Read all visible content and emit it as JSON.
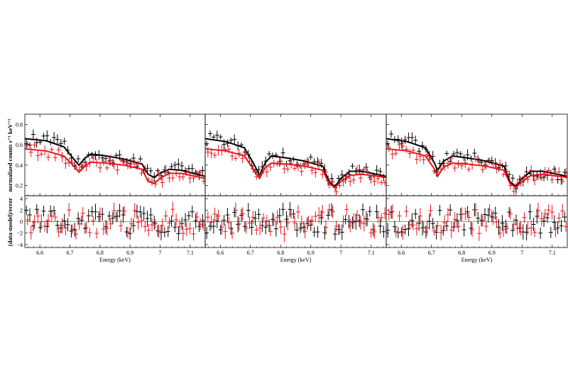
{
  "figure": {
    "ylabel_top": "normalized counts s⁻¹ keV⁻¹",
    "ylabel_bottom": "(data-model)/error",
    "colors": {
      "dataset_1": "#000000",
      "dataset_2": "#e8141c",
      "zero_line": "#33dd33",
      "frame": "#000000"
    }
  },
  "chart_data": [
    {
      "type": "scatter",
      "panel": "left",
      "xlabel": "Energy (keV)",
      "xlim": [
        6.55,
        7.15
      ],
      "x_ticks": [
        "6.6",
        "6.7",
        "6.8",
        "6.9",
        "7",
        "7.1"
      ],
      "top": {
        "ylim": [
          0.1,
          0.9
        ],
        "y_ticks": [
          "0.2",
          "0.4",
          "0.6",
          "0.8"
        ],
        "series": [
          {
            "model": [
              [
                6.55,
                0.66
              ],
              [
                6.62,
                0.64
              ],
              [
                6.68,
                0.58
              ],
              [
                6.71,
                0.47
              ],
              [
                6.73,
                0.4
              ],
              [
                6.75,
                0.47
              ],
              [
                6.77,
                0.51
              ],
              [
                6.82,
                0.49
              ],
              [
                6.88,
                0.46
              ],
              [
                6.94,
                0.41
              ],
              [
                6.96,
                0.31
              ],
              [
                6.98,
                0.28
              ],
              [
                7.0,
                0.32
              ],
              [
                7.03,
                0.36
              ],
              [
                7.07,
                0.35
              ],
              [
                7.15,
                0.29
              ]
            ]
          },
          {
            "model": [
              [
                6.55,
                0.56
              ],
              [
                6.62,
                0.54
              ],
              [
                6.68,
                0.49
              ],
              [
                6.71,
                0.4
              ],
              [
                6.73,
                0.33
              ],
              [
                6.75,
                0.39
              ],
              [
                6.77,
                0.43
              ],
              [
                6.82,
                0.42
              ],
              [
                6.88,
                0.4
              ],
              [
                6.94,
                0.36
              ],
              [
                6.96,
                0.24
              ],
              [
                6.98,
                0.22
              ],
              [
                7.0,
                0.27
              ],
              [
                7.03,
                0.32
              ],
              [
                7.07,
                0.32
              ],
              [
                7.15,
                0.27
              ]
            ]
          }
        ]
      },
      "bottom": {
        "ylim": [
          -4.5,
          4.5
        ],
        "y_ticks": [
          "−4",
          "−2",
          "0",
          "2",
          "4"
        ]
      }
    },
    {
      "type": "scatter",
      "panel": "middle",
      "xlabel": "Energy (keV)",
      "xlim": [
        6.55,
        7.15
      ],
      "x_ticks": [
        "6.6",
        "6.7",
        "6.8",
        "6.9",
        "7",
        "7.1"
      ],
      "top": {
        "ylim": [
          0.1,
          0.9
        ],
        "series": [
          {
            "model": [
              [
                6.55,
                0.66
              ],
              [
                6.62,
                0.63
              ],
              [
                6.68,
                0.57
              ],
              [
                6.71,
                0.42
              ],
              [
                6.73,
                0.3
              ],
              [
                6.75,
                0.43
              ],
              [
                6.77,
                0.49
              ],
              [
                6.82,
                0.47
              ],
              [
                6.88,
                0.44
              ],
              [
                6.94,
                0.39
              ],
              [
                6.96,
                0.24
              ],
              [
                6.98,
                0.19
              ],
              [
                7.0,
                0.27
              ],
              [
                7.03,
                0.34
              ],
              [
                7.07,
                0.34
              ],
              [
                7.15,
                0.29
              ]
            ]
          },
          {
            "model": [
              [
                6.55,
                0.56
              ],
              [
                6.62,
                0.54
              ],
              [
                6.68,
                0.49
              ],
              [
                6.71,
                0.36
              ],
              [
                6.73,
                0.27
              ],
              [
                6.75,
                0.38
              ],
              [
                6.77,
                0.42
              ],
              [
                6.82,
                0.41
              ],
              [
                6.88,
                0.39
              ],
              [
                6.94,
                0.35
              ],
              [
                6.96,
                0.22
              ],
              [
                6.98,
                0.18
              ],
              [
                7.0,
                0.24
              ],
              [
                7.03,
                0.3
              ],
              [
                7.07,
                0.31
              ],
              [
                7.15,
                0.28
              ]
            ]
          }
        ]
      },
      "bottom": {
        "ylim": [
          -4.5,
          4.5
        ]
      }
    },
    {
      "type": "scatter",
      "panel": "right",
      "xlabel": "Energy (keV)",
      "xlim": [
        6.55,
        7.15
      ],
      "x_ticks": [
        "6.6",
        "6.7",
        "6.8",
        "6.9",
        "7",
        "7.1"
      ],
      "top": {
        "ylim": [
          0.1,
          0.9
        ],
        "series": [
          {
            "model": [
              [
                6.55,
                0.66
              ],
              [
                6.62,
                0.63
              ],
              [
                6.68,
                0.57
              ],
              [
                6.71,
                0.42
              ],
              [
                6.72,
                0.35
              ],
              [
                6.74,
                0.44
              ],
              [
                6.77,
                0.49
              ],
              [
                6.82,
                0.47
              ],
              [
                6.88,
                0.44
              ],
              [
                6.94,
                0.39
              ],
              [
                6.96,
                0.24
              ],
              [
                6.98,
                0.19
              ],
              [
                7.0,
                0.27
              ],
              [
                7.03,
                0.34
              ],
              [
                7.07,
                0.34
              ],
              [
                7.15,
                0.29
              ]
            ]
          },
          {
            "model": [
              [
                6.55,
                0.56
              ],
              [
                6.62,
                0.54
              ],
              [
                6.68,
                0.49
              ],
              [
                6.71,
                0.36
              ],
              [
                6.72,
                0.29
              ],
              [
                6.74,
                0.38
              ],
              [
                6.77,
                0.42
              ],
              [
                6.82,
                0.41
              ],
              [
                6.88,
                0.39
              ],
              [
                6.94,
                0.35
              ],
              [
                6.96,
                0.22
              ],
              [
                6.98,
                0.18
              ],
              [
                7.0,
                0.24
              ],
              [
                7.03,
                0.3
              ],
              [
                7.07,
                0.31
              ],
              [
                7.15,
                0.28
              ]
            ]
          }
        ]
      },
      "bottom": {
        "ylim": [
          -4.5,
          4.5
        ]
      }
    }
  ]
}
